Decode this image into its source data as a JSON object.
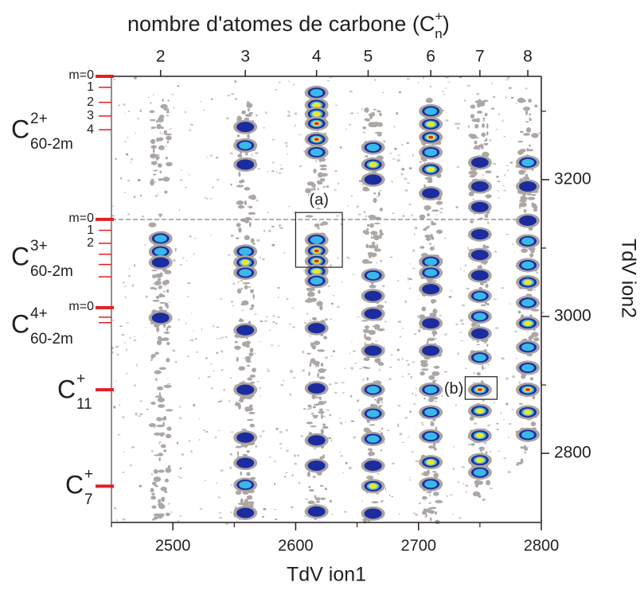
{
  "chart_data": {
    "type": "coincidence-map",
    "xlabel": "TdV ion1",
    "ylabel": "TdV ion2",
    "top_title": [
      "nombre d'atomes de carbone (C",
      "+",
      "n",
      ")"
    ],
    "xlim": [
      2450,
      2800
    ],
    "ylim": [
      2699,
      3351
    ],
    "xticks": [
      2500,
      2600,
      2700,
      2800
    ],
    "xminor": [
      2450,
      2550,
      2650,
      2750
    ],
    "yticks": [
      2800,
      3000,
      3200
    ],
    "yminor": [
      2900,
      3100,
      3300
    ],
    "top_ticks": [
      {
        "value": 2490,
        "label": "2"
      },
      {
        "value": 2559,
        "label": "3"
      },
      {
        "value": 2617,
        "label": "4"
      },
      {
        "value": 2659,
        "label": "5"
      },
      {
        "value": 2710,
        "label": "6"
      },
      {
        "value": 2750,
        "label": "7"
      },
      {
        "value": 2789,
        "label": "8"
      }
    ],
    "left_markers": [
      {
        "y": 3351,
        "label": "m=0",
        "major": true
      },
      {
        "y": 3335,
        "label": "1"
      },
      {
        "y": 3313,
        "label": "2"
      },
      {
        "y": 3293,
        "label": "3"
      },
      {
        "y": 3273,
        "label": "4"
      },
      {
        "y": 3142,
        "label": "m=0",
        "major": true
      },
      {
        "y": 3126,
        "label": "1"
      },
      {
        "y": 3107,
        "label": "2"
      },
      {
        "y": 3091
      },
      {
        "y": 3076
      },
      {
        "y": 3058
      },
      {
        "y": 3013,
        "label": "m=0",
        "major": true
      },
      {
        "y": 2999
      },
      {
        "y": 2991
      },
      {
        "y": 2893,
        "major": true
      },
      {
        "y": 2752,
        "major": true
      }
    ],
    "species": [
      {
        "base": "C",
        "sup": "2+",
        "sub": "60-2m"
      },
      {
        "base": "C",
        "sup": "3+",
        "sub": "60-2m"
      },
      {
        "base": "C",
        "sup": "4+",
        "sub": "60-2m"
      },
      {
        "base": "C",
        "sup": "+",
        "sub": "11"
      },
      {
        "base": "C",
        "sup": "+",
        "sub": "7"
      }
    ],
    "boxes": [
      {
        "label": "(a)",
        "x": [
          2600,
          2638
        ],
        "y": [
          3072,
          3152
        ]
      },
      {
        "label": "(b)",
        "x": [
          2738,
          2764
        ],
        "y": [
          2879,
          2912
        ]
      }
    ],
    "level_colors": [
      "#1c2c9e",
      "#3ab8e8",
      "#f0e52a",
      "#e3222a"
    ],
    "columns": [
      {
        "x": 2490,
        "y": [
          3114,
          3095,
          3079,
          2998
        ],
        "level": [
          2,
          2,
          1,
          1
        ]
      },
      {
        "x": 2559,
        "y": [
          3277,
          3250,
          3222,
          3095,
          3079,
          3064,
          2980,
          2893,
          2823,
          2786,
          2754,
          2713
        ],
        "level": [
          1,
          2,
          1,
          2,
          3,
          2,
          1,
          1,
          1,
          1,
          2,
          1
        ]
      },
      {
        "x": 2617,
        "y": [
          3327,
          3309,
          3296,
          3282,
          3259,
          3240,
          3112,
          3096,
          3081,
          3066,
          3052,
          2983,
          2895,
          2819,
          2782,
          2715
        ],
        "level": [
          2,
          3,
          3,
          4,
          4,
          2,
          2,
          4,
          4,
          3,
          2,
          1,
          1,
          1,
          1,
          1
        ]
      },
      {
        "x": 2663,
        "y": [
          3247,
          3222,
          3200,
          3060,
          3030,
          3004,
          2950,
          2893,
          2858,
          2821,
          2782,
          2752,
          2712
        ],
        "level": [
          2,
          3,
          1,
          2,
          1,
          1,
          1,
          2,
          2,
          2,
          1,
          3,
          1
        ]
      },
      {
        "x": 2710,
        "y": [
          3300,
          3281,
          3262,
          3240,
          3215,
          3180,
          3080,
          3064,
          3040,
          2990,
          2950,
          2893,
          2860,
          2825,
          2787,
          2755
        ],
        "level": [
          2,
          3,
          4,
          2,
          3,
          1,
          2,
          2,
          1,
          1,
          1,
          2,
          2,
          2,
          3,
          2
        ]
      },
      {
        "x": 2750,
        "y": [
          3225,
          3190,
          3160,
          3120,
          3090,
          3060,
          3030,
          3000,
          2975,
          2940,
          2893,
          2862,
          2826,
          2790,
          2772
        ],
        "level": [
          1,
          1,
          1,
          1,
          1,
          1,
          2,
          2,
          1,
          2,
          4,
          3,
          3,
          3,
          2
        ]
      },
      {
        "x": 2789,
        "y": [
          3225,
          3190,
          3140,
          3110,
          3075,
          3050,
          3020,
          2990,
          2955,
          2925,
          2893,
          2860,
          2827
        ],
        "level": [
          2,
          1,
          1,
          2,
          2,
          3,
          2,
          3,
          2,
          2,
          4,
          3,
          2
        ]
      }
    ]
  }
}
